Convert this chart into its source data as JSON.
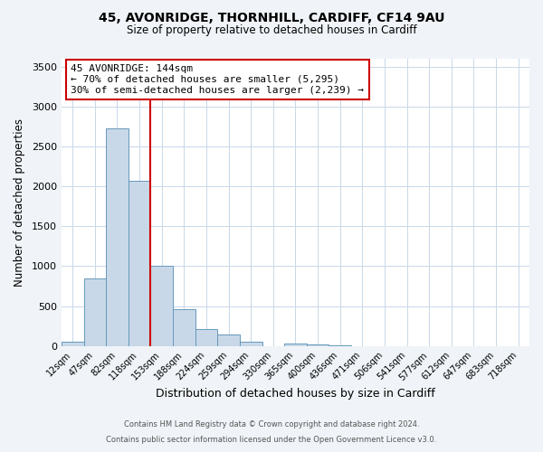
{
  "title": "45, AVONRIDGE, THORNHILL, CARDIFF, CF14 9AU",
  "subtitle": "Size of property relative to detached houses in Cardiff",
  "xlabel": "Distribution of detached houses by size in Cardiff",
  "ylabel": "Number of detached properties",
  "bar_labels": [
    "12sqm",
    "47sqm",
    "82sqm",
    "118sqm",
    "153sqm",
    "188sqm",
    "224sqm",
    "259sqm",
    "294sqm",
    "330sqm",
    "365sqm",
    "400sqm",
    "436sqm",
    "471sqm",
    "506sqm",
    "541sqm",
    "577sqm",
    "612sqm",
    "647sqm",
    "683sqm",
    "718sqm"
  ],
  "bar_values": [
    55,
    850,
    2725,
    2075,
    1010,
    460,
    215,
    145,
    55,
    0,
    25,
    15,
    5,
    0,
    0,
    0,
    0,
    0,
    0,
    0,
    0
  ],
  "bar_color": "#c8d8e8",
  "bar_edge_color": "#6699bb",
  "property_line_x": 3.5,
  "property_label": "45 AVONRIDGE: 144sqm",
  "annotation_line1": "← 70% of detached houses are smaller (5,295)",
  "annotation_line2": "30% of semi-detached houses are larger (2,239) →",
  "annotation_box_color": "#cc0000",
  "ylim": [
    0,
    3600
  ],
  "yticks": [
    0,
    500,
    1000,
    1500,
    2000,
    2500,
    3000,
    3500
  ],
  "footer1": "Contains HM Land Registry data © Crown copyright and database right 2024.",
  "footer2": "Contains public sector information licensed under the Open Government Licence v3.0.",
  "bg_color": "#f0f4f8",
  "plot_bg_color": "#ffffff",
  "grid_color": "#c8d8e8",
  "title_fontsize": 10,
  "subtitle_fontsize": 8.5,
  "annot_fontsize": 8,
  "xlabel_fontsize": 9,
  "ylabel_fontsize": 8.5,
  "footer_fontsize": 6
}
